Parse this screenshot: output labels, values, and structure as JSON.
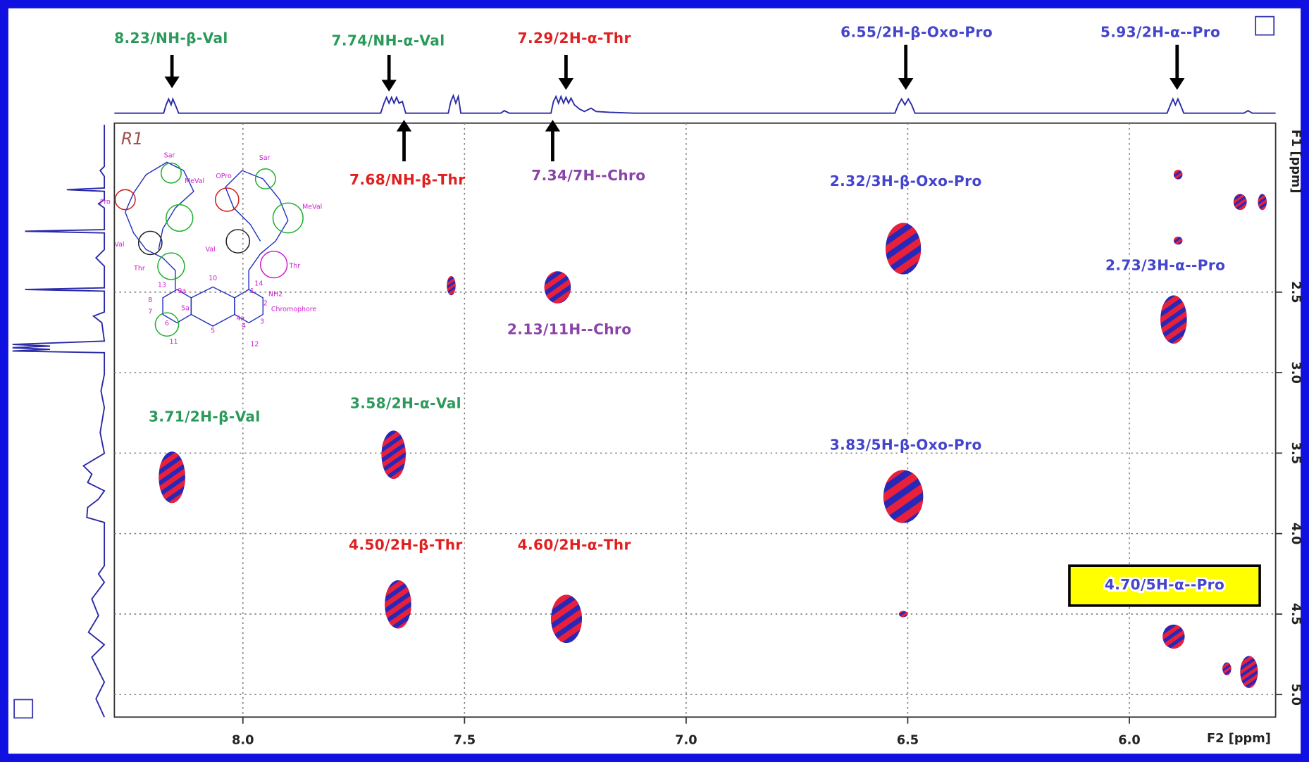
{
  "chart_data": {
    "type": "scatter",
    "corner_label": "R1",
    "x_label": "F2 [ppm]",
    "y_label": "F1 [ppm]",
    "xlim": [
      8.29,
      5.67
    ],
    "ylim": [
      1.45,
      5.14
    ],
    "xticks": [
      {
        "value": 8,
        "label": "8.0"
      },
      7.5,
      {
        "value": 7,
        "label": "7.0"
      },
      6.5,
      {
        "value": 6,
        "label": "6.0"
      }
    ],
    "yticks": [
      2.5,
      {
        "value": 3,
        "label": "3.0"
      },
      3.5,
      {
        "value": 4,
        "label": "4.0"
      },
      4.5,
      {
        "value": 5,
        "label": "5.0"
      }
    ],
    "grid": true,
    "colors": {
      "positive": "#e8203a",
      "negative": "#2828b8"
    },
    "x": [
      8.16,
      7.66,
      7.65,
      6.51,
      6.51,
      7.29,
      7.27,
      5.9,
      5.9,
      5.89,
      5.89,
      5.75,
      5.7,
      6.51,
      7.53,
      5.73,
      5.78
    ],
    "values": [
      3.65,
      3.51,
      4.44,
      2.23,
      3.77,
      2.47,
      4.53,
      2.67,
      4.64,
      1.77,
      2.18,
      1.94,
      1.94,
      4.5,
      2.46,
      4.86,
      4.84
    ],
    "x_width": [
      0.06,
      0.055,
      0.06,
      0.08,
      0.09,
      0.06,
      0.07,
      0.06,
      0.05,
      0.02,
      0.02,
      0.03,
      0.02,
      0.02,
      0.02,
      0.04,
      0.02
    ],
    "y_width": [
      0.32,
      0.3,
      0.3,
      0.32,
      0.33,
      0.2,
      0.3,
      0.3,
      0.15,
      0.06,
      0.05,
      0.1,
      0.1,
      0.04,
      0.12,
      0.2,
      0.08
    ],
    "annotations": [
      {
        "text": "8.23/NH-β-Val",
        "color": "#2a9a5a"
      },
      {
        "text": "7.74/NH-α-Val",
        "color": "#2a9a5a"
      },
      {
        "text": "7.29/2H-α-Thr",
        "color": "#e02020"
      },
      {
        "text": "6.55/2H-β-Oxo-Pro",
        "color": "#4444cc"
      },
      {
        "text": "5.93/2H-α--Pro",
        "color": "#4444cc"
      },
      {
        "text": "7.68/NH-β-Thr",
        "color": "#e02020"
      },
      {
        "text": "7.34/7H--Chro",
        "color": "#8a44a8"
      },
      {
        "text": "2.32/3H-β-Oxo-Pro",
        "color": "#4444cc"
      },
      {
        "text": "2.73/3H-α--Pro",
        "color": "#4444cc"
      },
      {
        "text": "2.13/11H--Chro",
        "color": "#8a44a8"
      },
      {
        "text": "3.71/2H-β-Val",
        "color": "#2a9a5a"
      },
      {
        "text": "3.58/2H-α-Val",
        "color": "#2a9a5a"
      },
      {
        "text": "3.83/5H-β-Oxo-Pro",
        "color": "#4444cc"
      },
      {
        "text": "4.50/2H-β-Thr",
        "color": "#e02020"
      },
      {
        "text": "4.60/2H-α-Thr",
        "color": "#e02020"
      },
      {
        "text": "4.70/5H-α--Pro",
        "color": "#4444cc",
        "background": "#ffff00"
      }
    ],
    "structure_labels": [
      "Sar",
      "MeVal",
      "Pro",
      "Val",
      "Thr",
      "OPro",
      "Sar",
      "MeVal",
      "Val",
      "Thr",
      "Chromophore",
      "NH2",
      "10",
      "9a",
      "5a",
      "4a",
      "5",
      "13",
      "14",
      "8",
      "7",
      "6",
      "1",
      "2",
      "3",
      "4",
      "11",
      "12"
    ]
  }
}
